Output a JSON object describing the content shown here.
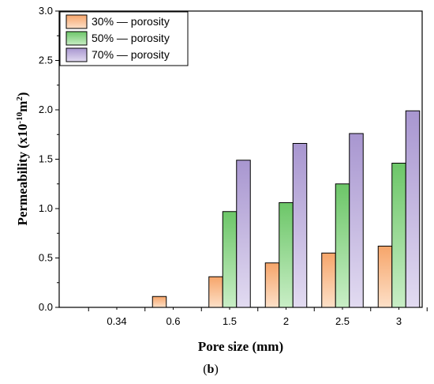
{
  "chart_data": {
    "type": "bar",
    "categories": [
      "0.34",
      "0.6",
      "1.5",
      "2",
      "2.5",
      "3"
    ],
    "series": [
      {
        "name": "30% — porosity",
        "values": [
          0,
          0.11,
          0.31,
          0.45,
          0.55,
          0.62
        ],
        "color": "#f7b27f"
      },
      {
        "name": "50% — porosity",
        "values": [
          0,
          0,
          0.97,
          1.06,
          1.25,
          1.46
        ],
        "color": "#7ed07b"
      },
      {
        "name": "70% — porosity",
        "values": [
          0,
          0,
          1.49,
          1.66,
          1.76,
          1.99
        ],
        "color": "#b5a6d8"
      }
    ],
    "xlabel": "Pore size (mm)",
    "ylabel_main": "Permeability (x10",
    "ylabel_exp": "-10",
    "ylabel_unit": "m",
    "ylabel_unit_exp": "2",
    "ylabel_close": ")",
    "ylim": [
      0,
      3.0
    ],
    "yticks": [
      "0.0",
      "0.5",
      "1.0",
      "1.5",
      "2.0",
      "2.5",
      "3.0"
    ],
    "legend_position": "top-left",
    "grid": false
  },
  "caption_open": "(",
  "caption_letter": "b",
  "caption_close": ")"
}
